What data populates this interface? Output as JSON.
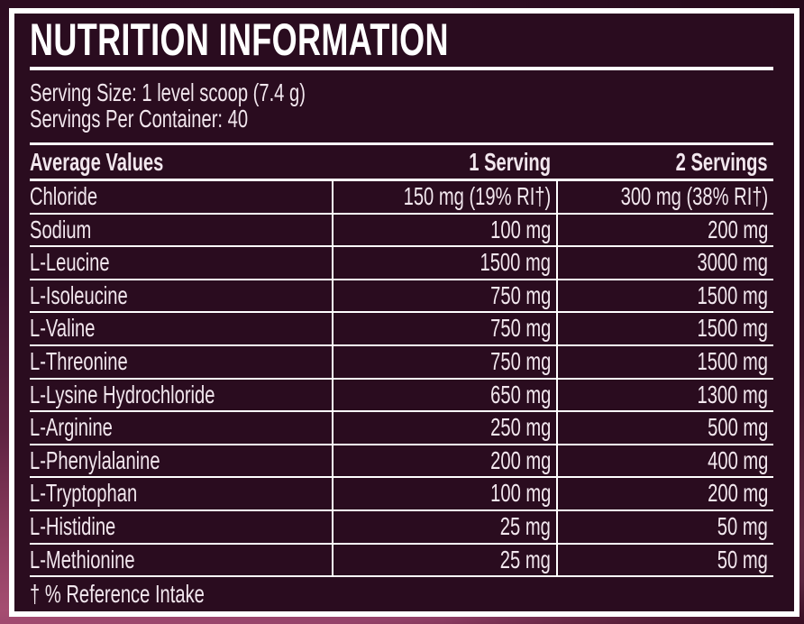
{
  "label": {
    "title": "NUTRITION INFORMATION",
    "serving_size": "Serving Size: 1 level scoop (7.4 g)",
    "servings_per_container": "Servings Per Container: 40",
    "footnote": "† % Reference Intake"
  },
  "table": {
    "headers": [
      "Average Values",
      "1 Serving",
      "2 Servings"
    ],
    "rows": [
      {
        "name": "Chloride",
        "serving1": "150 mg (19% RI†)",
        "serving2": "300 mg (38% RI†)"
      },
      {
        "name": "Sodium",
        "serving1": "100 mg",
        "serving2": "200 mg"
      },
      {
        "name": "L-Leucine",
        "serving1": "1500 mg",
        "serving2": "3000 mg"
      },
      {
        "name": "L-Isoleucine",
        "serving1": "750 mg",
        "serving2": "1500 mg"
      },
      {
        "name": "L-Valine",
        "serving1": "750 mg",
        "serving2": "1500 mg"
      },
      {
        "name": "L-Threonine",
        "serving1": "750 mg",
        "serving2": "1500 mg"
      },
      {
        "name": "L-Lysine Hydrochloride",
        "serving1": "650 mg",
        "serving2": "1300 mg"
      },
      {
        "name": "L-Arginine",
        "serving1": "250 mg",
        "serving2": "500 mg"
      },
      {
        "name": "L-Phenylalanine",
        "serving1": "200 mg",
        "serving2": "400 mg"
      },
      {
        "name": "L-Tryptophan",
        "serving1": "100 mg",
        "serving2": "200 mg"
      },
      {
        "name": "L-Histidine",
        "serving1": "25 mg",
        "serving2": "50 mg"
      },
      {
        "name": "L-Methionine",
        "serving1": "25 mg",
        "serving2": "50 mg"
      }
    ]
  },
  "colors": {
    "label_background": "#2a0c1f",
    "frame_border": "#ffffff",
    "text": "#f2e7ee",
    "outer_top": "#2e0d22",
    "outer_bottom_light": "#a54d71",
    "outer_bottom_dark": "#541632"
  }
}
